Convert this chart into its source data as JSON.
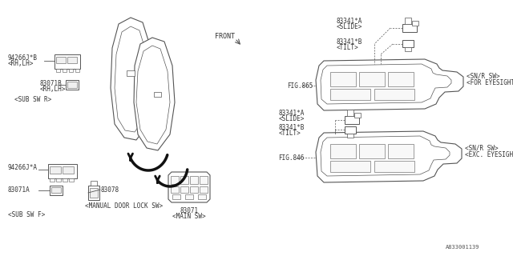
{
  "bg_color": "#ffffff",
  "line_color": "#555555",
  "text_color": "#333333",
  "part_number_ref": "A833001139",
  "labels": {
    "front": "FRONT",
    "main_sw_num": "83071",
    "main_sw_label": "<MAIN SW>",
    "sub_sw_r_label": "<SUB SW R>",
    "sub_sw_f_label": "<SUB SW F>",
    "part_94266jb": "94266J*B",
    "part_94266jb_sub": "<RH,LH>",
    "part_83071b": "83071B",
    "part_83071b_sub": "<RH,LH>",
    "part_94266ja": "94266J*A",
    "part_83071a": "83071A",
    "part_83078": "83078",
    "part_83078_label": "<MANUAL DOOR LOCK SW>",
    "part_83341a_top": "83341*A",
    "part_83341a_top_sub": "<SLIDE>",
    "part_83341b_top": "83341*B",
    "part_83341b_top_sub": "<TILT>",
    "fig865": "FIG.865",
    "part_83341a_bot": "83341*A",
    "part_83341a_bot_sub": "<SLIDE>",
    "part_83341b_bot": "83341*B",
    "part_83341b_bot_sub": "<TILT>",
    "fig846": "FIG.846",
    "snr_sw_for_label1": "<SN/R SW>",
    "snr_sw_for_label2": "<FOR EYESIGHT>",
    "snr_sw_exc_label1": "<SN/R SW>",
    "snr_sw_exc_label2": "<EXC. EYESIGHT>"
  },
  "font_size": 5.5,
  "font_family": "monospace"
}
